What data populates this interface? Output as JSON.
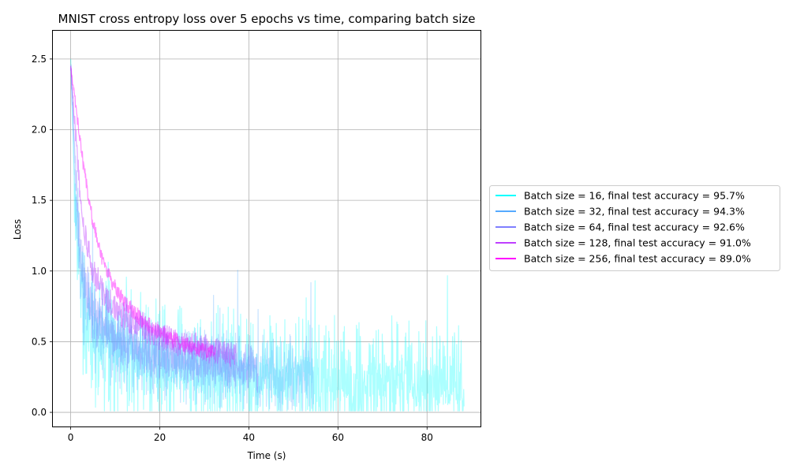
{
  "chart_data": {
    "type": "line",
    "title": "MNIST cross entropy loss over 5 epochs vs time, comparing batch size",
    "xlabel": "Time (s)",
    "ylabel": "Loss",
    "xlim": [
      -4,
      92
    ],
    "ylim": [
      -0.1,
      2.7
    ],
    "xticks": [
      0,
      20,
      40,
      60,
      80
    ],
    "yticks": [
      0.0,
      0.5,
      1.0,
      1.5,
      2.0,
      2.5
    ],
    "xtick_labels": [
      "0",
      "20",
      "40",
      "60",
      "80"
    ],
    "ytick_labels": [
      "0.0",
      "0.5",
      "1.0",
      "1.5",
      "2.0",
      "2.5"
    ],
    "grid": true,
    "legend_position": "outside-right",
    "series": [
      {
        "name": "Batch size = 16, final test accuracy = 95.7%",
        "color": "#00ffff",
        "opacity": 0.33,
        "end_time": 88.3,
        "x": [
          0,
          0.5,
          1,
          2,
          3,
          5,
          8,
          12,
          16,
          20,
          25,
          30,
          35,
          40,
          50,
          60,
          70,
          80,
          88
        ],
        "loss_trend": [
          2.5,
          2.0,
          1.5,
          0.95,
          0.7,
          0.55,
          0.45,
          0.4,
          0.36,
          0.33,
          0.31,
          0.29,
          0.27,
          0.26,
          0.24,
          0.22,
          0.21,
          0.2,
          0.2
        ],
        "noise_low": [
          0.0,
          0.05,
          0.1,
          0.2,
          0.2,
          0.18,
          0.16,
          0.16,
          0.16,
          0.16,
          0.16,
          0.16,
          0.16,
          0.16,
          0.16,
          0.16,
          0.16,
          0.16,
          0.16
        ],
        "noise_high": [
          0.05,
          0.2,
          0.35,
          0.45,
          0.5,
          0.55,
          0.55,
          0.5,
          0.5,
          0.48,
          0.48,
          0.48,
          0.48,
          0.45,
          0.45,
          0.45,
          0.45,
          0.45,
          0.45
        ]
      },
      {
        "name": "Batch size = 32, final test accuracy = 94.3%",
        "color": "#55aaff",
        "opacity": 0.33,
        "end_time": 54.5,
        "x": [
          0,
          0.5,
          1,
          2,
          3,
          5,
          8,
          12,
          16,
          20,
          25,
          30,
          35,
          40,
          45,
          50,
          54
        ],
        "loss_trend": [
          2.45,
          2.05,
          1.6,
          1.05,
          0.78,
          0.6,
          0.5,
          0.44,
          0.4,
          0.37,
          0.34,
          0.32,
          0.3,
          0.29,
          0.28,
          0.27,
          0.26
        ],
        "noise_low": [
          0.0,
          0.05,
          0.1,
          0.18,
          0.18,
          0.16,
          0.15,
          0.14,
          0.14,
          0.14,
          0.14,
          0.13,
          0.13,
          0.13,
          0.13,
          0.13,
          0.13
        ],
        "noise_high": [
          0.05,
          0.15,
          0.3,
          0.35,
          0.35,
          0.35,
          0.32,
          0.3,
          0.28,
          0.28,
          0.28,
          0.28,
          0.28,
          0.28,
          0.28,
          0.28,
          0.28
        ]
      },
      {
        "name": "Batch size = 64, final test accuracy = 92.6%",
        "color": "#7f7fff",
        "opacity": 0.38,
        "end_time": 42.0,
        "x": [
          0,
          0.5,
          1,
          2,
          3,
          5,
          8,
          12,
          16,
          20,
          25,
          30,
          35,
          40,
          42
        ],
        "loss_trend": [
          2.45,
          2.15,
          1.75,
          1.2,
          0.9,
          0.7,
          0.58,
          0.5,
          0.45,
          0.41,
          0.38,
          0.35,
          0.33,
          0.31,
          0.3
        ],
        "noise_low": [
          0.0,
          0.05,
          0.08,
          0.14,
          0.14,
          0.13,
          0.12,
          0.11,
          0.11,
          0.11,
          0.1,
          0.1,
          0.1,
          0.1,
          0.1
        ],
        "noise_high": [
          0.05,
          0.1,
          0.18,
          0.22,
          0.22,
          0.22,
          0.2,
          0.18,
          0.18,
          0.18,
          0.17,
          0.17,
          0.17,
          0.17,
          0.17
        ]
      },
      {
        "name": "Batch size = 128, final test accuracy = 91.0%",
        "color": "#bf3fff",
        "opacity": 0.45,
        "end_time": 37.0,
        "x": [
          0,
          0.5,
          1,
          2,
          3,
          5,
          8,
          12,
          16,
          20,
          25,
          30,
          35,
          37
        ],
        "loss_trend": [
          2.45,
          2.25,
          2.0,
          1.6,
          1.3,
          1.0,
          0.8,
          0.68,
          0.6,
          0.54,
          0.49,
          0.45,
          0.42,
          0.41
        ],
        "noise_low": [
          0.0,
          0.03,
          0.05,
          0.08,
          0.08,
          0.08,
          0.08,
          0.08,
          0.08,
          0.08,
          0.08,
          0.08,
          0.08,
          0.08
        ],
        "noise_high": [
          0.03,
          0.06,
          0.08,
          0.1,
          0.1,
          0.1,
          0.1,
          0.1,
          0.1,
          0.1,
          0.1,
          0.1,
          0.1,
          0.1
        ]
      },
      {
        "name": "Batch size = 256, final test accuracy = 89.0%",
        "color": "#ff00ff",
        "opacity": 0.45,
        "end_time": 32.5,
        "x": [
          0,
          1,
          2,
          3,
          4,
          5,
          6,
          8,
          10,
          12,
          15,
          18,
          21,
          24,
          27,
          30,
          32.5
        ],
        "loss_trend": [
          2.45,
          2.2,
          1.95,
          1.72,
          1.52,
          1.35,
          1.2,
          1.0,
          0.88,
          0.78,
          0.68,
          0.6,
          0.55,
          0.5,
          0.47,
          0.44,
          0.42
        ],
        "noise_low": [
          0.0,
          0.02,
          0.03,
          0.04,
          0.04,
          0.04,
          0.04,
          0.04,
          0.04,
          0.05,
          0.05,
          0.05,
          0.05,
          0.05,
          0.05,
          0.05,
          0.05
        ],
        "noise_high": [
          0.02,
          0.04,
          0.05,
          0.06,
          0.06,
          0.06,
          0.06,
          0.06,
          0.06,
          0.06,
          0.06,
          0.06,
          0.06,
          0.06,
          0.06,
          0.06,
          0.06
        ]
      }
    ]
  }
}
